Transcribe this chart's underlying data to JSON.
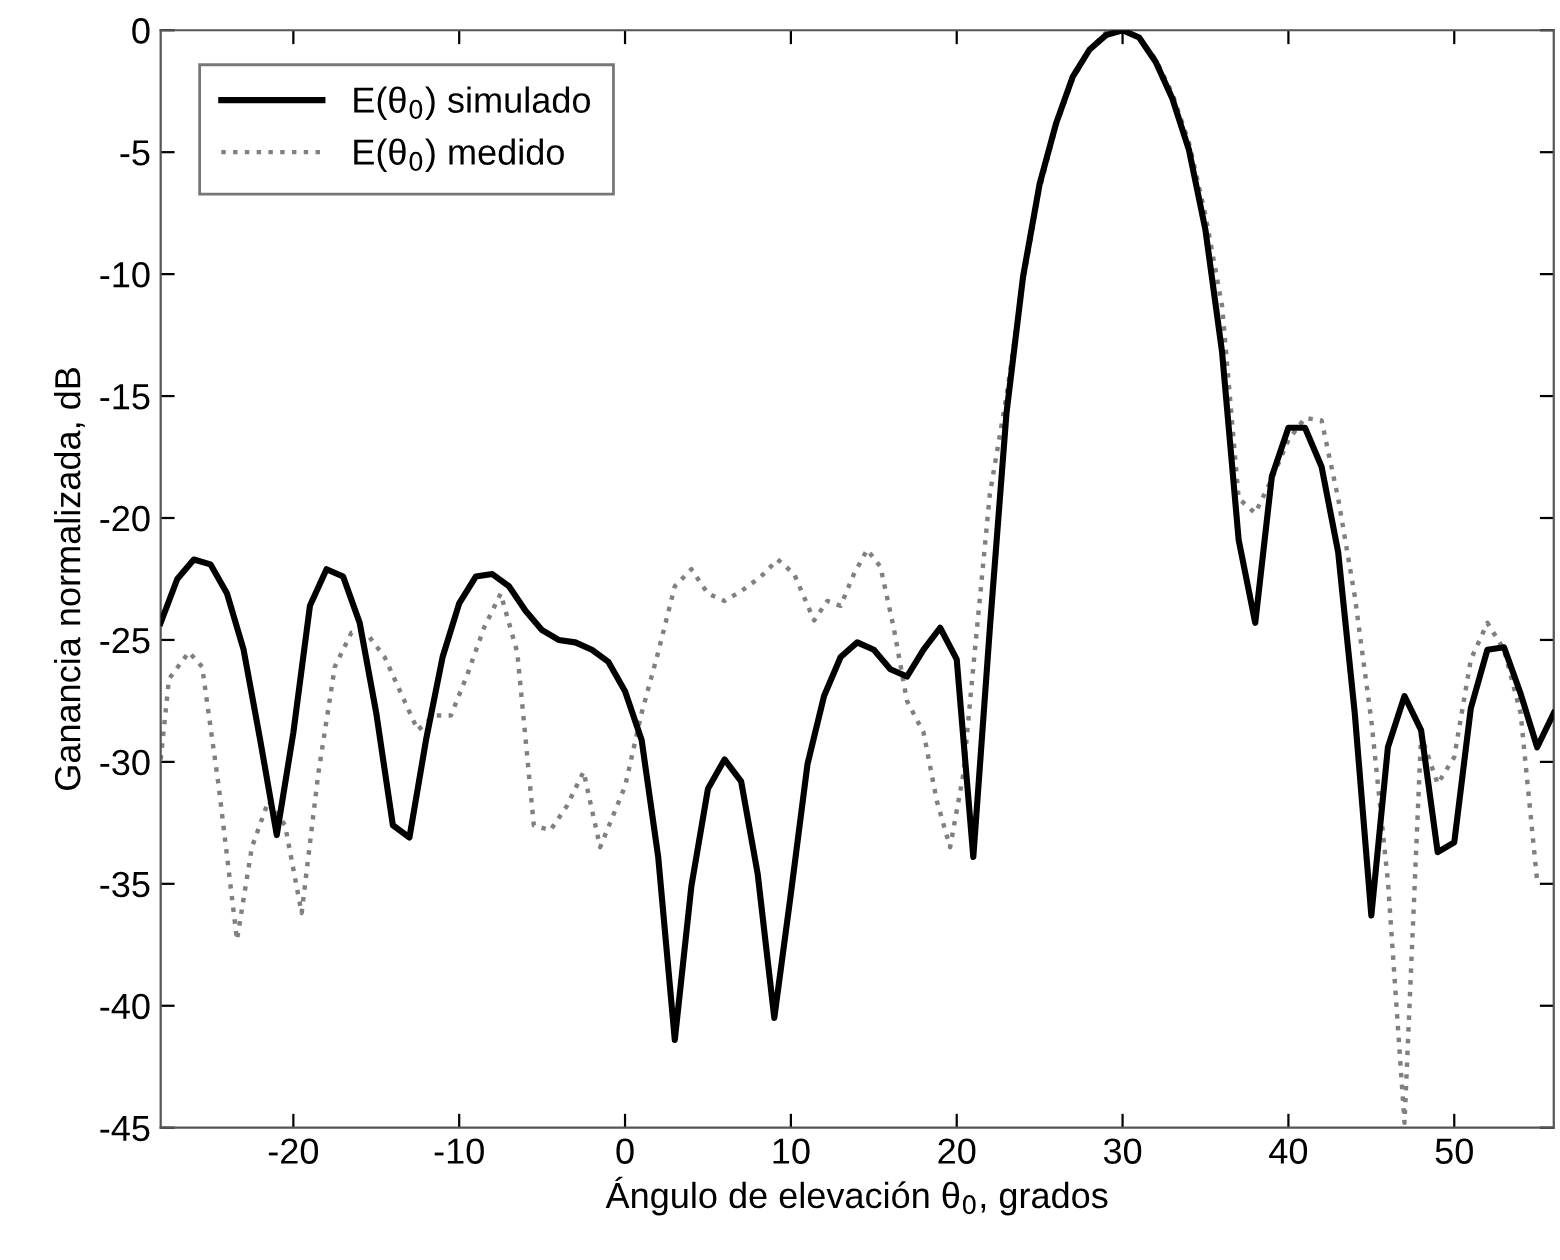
{
  "chart_data": {
    "type": "line",
    "xlabel": "Ángulo de elevación θ$_{0}$, grados",
    "ylabel": "Ganancia normalizada, dB",
    "xlim": [
      -28,
      56
    ],
    "ylim": [
      -45,
      0
    ],
    "xticks": [
      -20,
      -10,
      0,
      10,
      20,
      30,
      40,
      50
    ],
    "yticks": [
      -45,
      -40,
      -35,
      -30,
      -25,
      -20,
      -15,
      -10,
      -5,
      0
    ],
    "grid": false,
    "legend": "top left",
    "marker": "none",
    "series": [
      {
        "name": "E(θ$_{0}$) simulado",
        "color": "#000000",
        "line_style": "solid",
        "x": [
          -28,
          -27,
          -26,
          -25,
          -24,
          -23,
          -22,
          -21,
          -20,
          -19,
          -18,
          -17,
          -16,
          -15,
          -14,
          -13,
          -12,
          -11,
          -10,
          -9,
          -8,
          -7,
          -6,
          -5,
          -4,
          -3,
          -2,
          -1,
          0,
          1,
          2,
          3,
          4,
          5,
          6,
          7,
          8,
          9,
          10,
          11,
          12,
          13,
          14,
          15,
          16,
          17,
          18,
          19,
          20,
          21,
          22,
          23,
          24,
          25,
          26,
          27,
          28,
          29,
          30,
          31,
          32,
          33,
          34,
          35,
          36,
          37,
          38,
          39,
          40,
          41,
          42,
          43,
          44,
          45,
          46,
          47,
          48,
          49,
          50,
          51,
          52,
          53,
          54,
          55,
          56
        ],
        "values": [
          -24.3,
          -22.5,
          -21.7,
          -21.9,
          -23.1,
          -25.4,
          -29.1,
          -33.0,
          -28.8,
          -23.6,
          -22.1,
          -22.4,
          -24.3,
          -28.0,
          -32.6,
          -33.1,
          -29.1,
          -25.7,
          -23.5,
          -22.4,
          -22.3,
          -22.8,
          -23.8,
          -24.6,
          -25.0,
          -25.1,
          -25.4,
          -25.9,
          -27.1,
          -29.1,
          -33.9,
          -41.4,
          -35.1,
          -31.1,
          -29.9,
          -30.8,
          -34.6,
          -40.5,
          -35.4,
          -30.1,
          -27.3,
          -25.7,
          -25.1,
          -25.4,
          -26.2,
          -26.5,
          -25.4,
          -24.5,
          -25.8,
          -33.9,
          -24.5,
          -15.7,
          -10.1,
          -6.3,
          -3.8,
          -1.9,
          -0.8,
          -0.2,
          0,
          -0.3,
          -1.3,
          -2.8,
          -4.9,
          -8.2,
          -13.2,
          -20.9,
          -24.3,
          -18.3,
          -16.3,
          -16.3,
          -17.9,
          -21.4,
          -28.0,
          -36.3,
          -29.4,
          -27.3,
          -28.7,
          -33.7,
          -33.3,
          -27.8,
          -25.4,
          -25.3,
          -27.2,
          -29.4,
          -28.0
        ]
      },
      {
        "name": "E(θ$_{0}$) medido",
        "color": "#808080",
        "line_style": "dotted",
        "x": [
          -28,
          -27.5,
          -26.3,
          -25.5,
          -24.5,
          -23.4,
          -22.5,
          -21.5,
          -20.5,
          -19.5,
          -18.5,
          -17.5,
          -16.5,
          -15.5,
          -14.5,
          -13.5,
          -12.5,
          -11.5,
          -10.5,
          -9.5,
          -8.5,
          -7.5,
          -6.5,
          -5.5,
          -4.5,
          -3.5,
          -2.5,
          -1.5,
          0,
          1,
          2,
          3,
          4,
          5,
          6,
          7,
          8.2,
          9.2,
          10.2,
          11.4,
          12.2,
          13,
          13.8,
          14.6,
          15.4,
          16.2,
          17,
          18,
          18.8,
          19.6,
          20.4,
          21,
          22,
          23,
          24,
          25,
          26,
          27,
          28,
          29,
          30,
          31,
          32,
          33,
          34,
          35,
          36,
          37,
          38,
          39,
          40,
          41,
          42,
          43,
          44,
          45,
          46,
          47,
          48,
          49,
          50,
          51,
          52,
          53,
          54,
          55
        ],
        "values": [
          -29.9,
          -26.6,
          -25.5,
          -26.1,
          -31.0,
          -37.3,
          -33.5,
          -31.6,
          -32.6,
          -36.2,
          -30.5,
          -26.1,
          -24.7,
          -24.8,
          -25.7,
          -27.2,
          -28.7,
          -28.1,
          -28.1,
          -26.4,
          -24.5,
          -23.1,
          -25.5,
          -32.6,
          -32.8,
          -31.8,
          -30.4,
          -33.5,
          -31.0,
          -28.0,
          -25.5,
          -22.8,
          -22.1,
          -23.1,
          -23.4,
          -23.0,
          -22.4,
          -21.7,
          -22.3,
          -24.2,
          -23.4,
          -23.6,
          -22.3,
          -21.3,
          -22.0,
          -24.5,
          -27.5,
          -28.8,
          -31.6,
          -33.5,
          -30.5,
          -26.1,
          -19.0,
          -15.0,
          -10.3,
          -6.5,
          -3.9,
          -2.0,
          -0.8,
          -0.1,
          0,
          -0.3,
          -1.2,
          -2.6,
          -4.6,
          -7.6,
          -11.3,
          -19.2,
          -19.8,
          -18.4,
          -16.8,
          -15.9,
          -16.0,
          -19.2,
          -23.2,
          -28.3,
          -34.9,
          -44.8,
          -28.9,
          -30.9,
          -29.8,
          -25.8,
          -24.3,
          -25.4,
          -28.0,
          -34.9
        ]
      }
    ]
  }
}
